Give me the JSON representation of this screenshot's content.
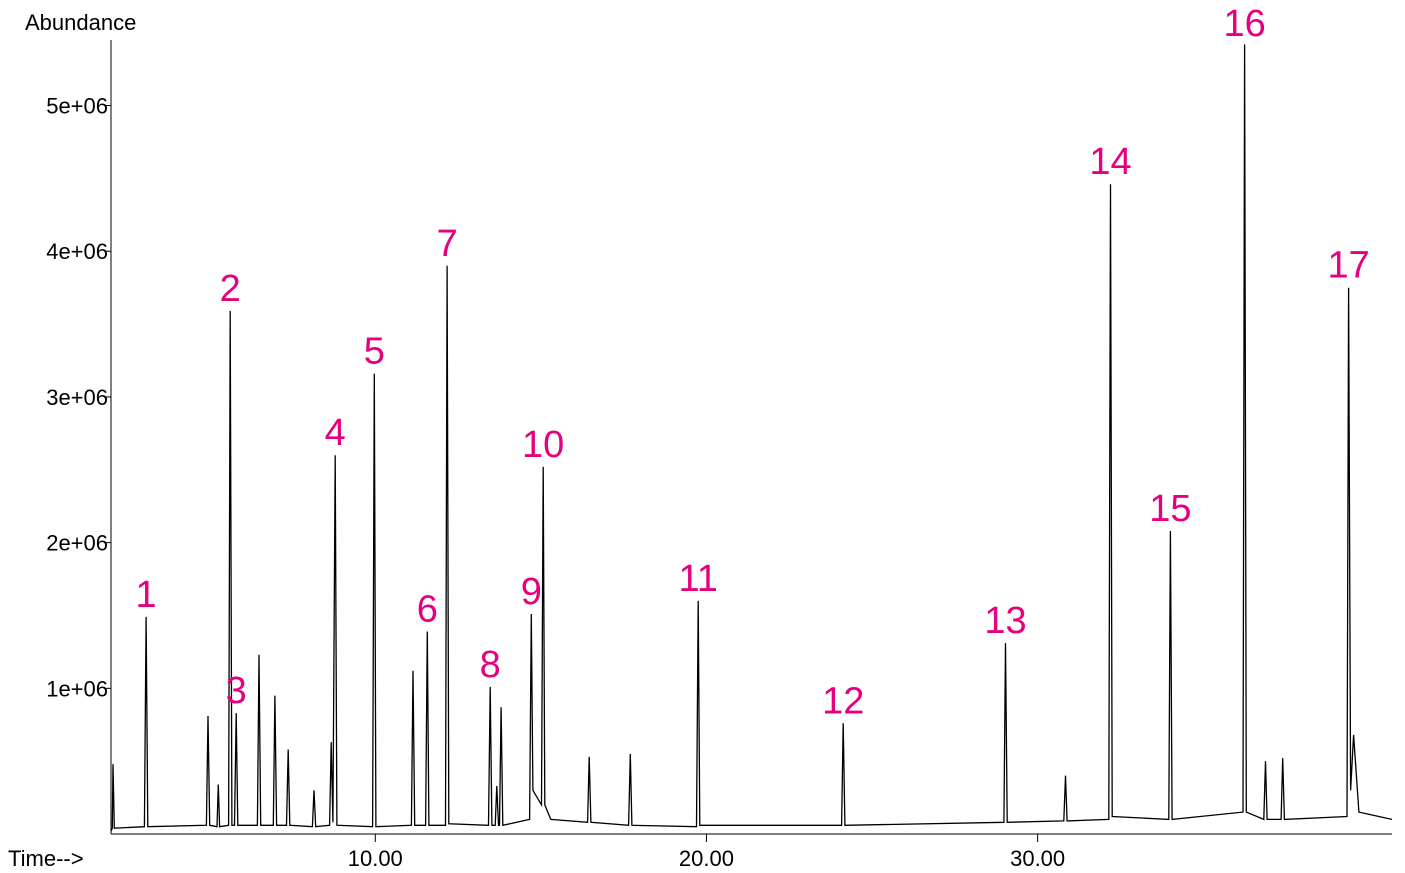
{
  "chart_data": {
    "type": "line",
    "y_label": "Abundance",
    "x_label": "Time-->",
    "xlim": [
      2.02,
      40.7
    ],
    "ylim": [
      0,
      5450000
    ],
    "xticks": [
      {
        "value": 10,
        "label": "10.00"
      },
      {
        "value": 20,
        "label": "20.00"
      },
      {
        "value": 30,
        "label": "30.00"
      }
    ],
    "yticks": [
      {
        "value": 1000000,
        "label": "1e+06"
      },
      {
        "value": 2000000,
        "label": "2e+06"
      },
      {
        "value": 3000000,
        "label": "3e+06"
      },
      {
        "value": 4000000,
        "label": "4e+06"
      },
      {
        "value": 5000000,
        "label": "5e+06"
      }
    ],
    "series": [
      {
        "color": "#000000",
        "x": [
          2.02,
          2.06,
          2.08,
          2.12,
          3.03,
          3.08,
          3.13,
          4.9,
          4.95,
          5.0,
          5.22,
          5.26,
          5.3,
          5.57,
          5.62,
          5.67,
          5.75,
          5.8,
          5.85,
          6.44,
          6.49,
          6.54,
          6.92,
          6.97,
          7.02,
          7.32,
          7.37,
          7.42,
          8.1,
          8.15,
          8.2,
          8.62,
          8.67,
          8.72,
          8.79,
          8.84,
          9.92,
          9.97,
          10.02,
          11.09,
          11.14,
          11.19,
          11.52,
          11.57,
          11.62,
          12.12,
          12.17,
          12.22,
          13.42,
          13.47,
          13.52,
          13.62,
          13.67,
          13.72,
          13.75,
          13.8,
          13.85,
          14.66,
          14.71,
          14.76,
          15.02,
          15.07,
          15.12,
          15.3,
          16.41,
          16.46,
          16.51,
          17.65,
          17.7,
          17.75,
          19.7,
          19.75,
          19.8,
          24.08,
          24.13,
          24.18,
          28.98,
          29.03,
          29.08,
          30.79,
          30.84,
          30.89,
          32.15,
          32.2,
          32.25,
          33.96,
          34.01,
          34.06,
          36.2,
          36.25,
          36.3,
          36.83,
          36.88,
          36.93,
          37.35,
          37.4,
          37.45,
          39.34,
          39.39,
          39.45,
          39.54,
          39.7,
          40.7
        ],
        "values": [
          20000,
          40000,
          480000,
          40000,
          50000,
          1490000,
          50000,
          60000,
          810000,
          60000,
          50000,
          340000,
          50000,
          60000,
          3590000,
          60000,
          60000,
          830000,
          60000,
          60000,
          1230000,
          60000,
          60000,
          950000,
          60000,
          60000,
          580000,
          60000,
          50000,
          300000,
          50000,
          60000,
          630000,
          80000,
          2600000,
          60000,
          50000,
          3160000,
          50000,
          60000,
          1120000,
          60000,
          60000,
          1390000,
          60000,
          60000,
          3900000,
          70000,
          60000,
          1010000,
          60000,
          60000,
          330000,
          60000,
          60000,
          870000,
          60000,
          100000,
          1510000,
          300000,
          200000,
          2520000,
          200000,
          100000,
          80000,
          530000,
          80000,
          60000,
          550000,
          60000,
          50000,
          1600000,
          60000,
          60000,
          760000,
          60000,
          80000,
          1310000,
          80000,
          90000,
          400000,
          90000,
          100000,
          4460000,
          120000,
          100000,
          2080000,
          100000,
          150000,
          5420000,
          150000,
          100000,
          500000,
          100000,
          100000,
          520000,
          100000,
          120000,
          3750000,
          300000,
          680000,
          150000,
          100000
        ]
      }
    ],
    "annotation_color": "#e6007e",
    "annotations": [
      {
        "text": "1",
        "x": 3.08,
        "y": 1490000
      },
      {
        "text": "2",
        "x": 5.62,
        "y": 3590000
      },
      {
        "text": "3",
        "x": 5.8,
        "y": 830000
      },
      {
        "text": "4",
        "x": 8.79,
        "y": 2600000
      },
      {
        "text": "5",
        "x": 9.97,
        "y": 3160000
      },
      {
        "text": "6",
        "x": 11.57,
        "y": 1390000
      },
      {
        "text": "7",
        "x": 12.17,
        "y": 3900000
      },
      {
        "text": "8",
        "x": 13.47,
        "y": 1010000
      },
      {
        "text": "9",
        "x": 14.71,
        "y": 1510000
      },
      {
        "text": "10",
        "x": 15.07,
        "y": 2520000
      },
      {
        "text": "11",
        "x": 19.75,
        "y": 1600000
      },
      {
        "text": "12",
        "x": 24.13,
        "y": 760000
      },
      {
        "text": "13",
        "x": 29.03,
        "y": 1310000
      },
      {
        "text": "14",
        "x": 32.2,
        "y": 4460000
      },
      {
        "text": "15",
        "x": 34.01,
        "y": 2080000
      },
      {
        "text": "16",
        "x": 36.25,
        "y": 5420000
      },
      {
        "text": "17",
        "x": 39.39,
        "y": 3750000
      }
    ]
  }
}
